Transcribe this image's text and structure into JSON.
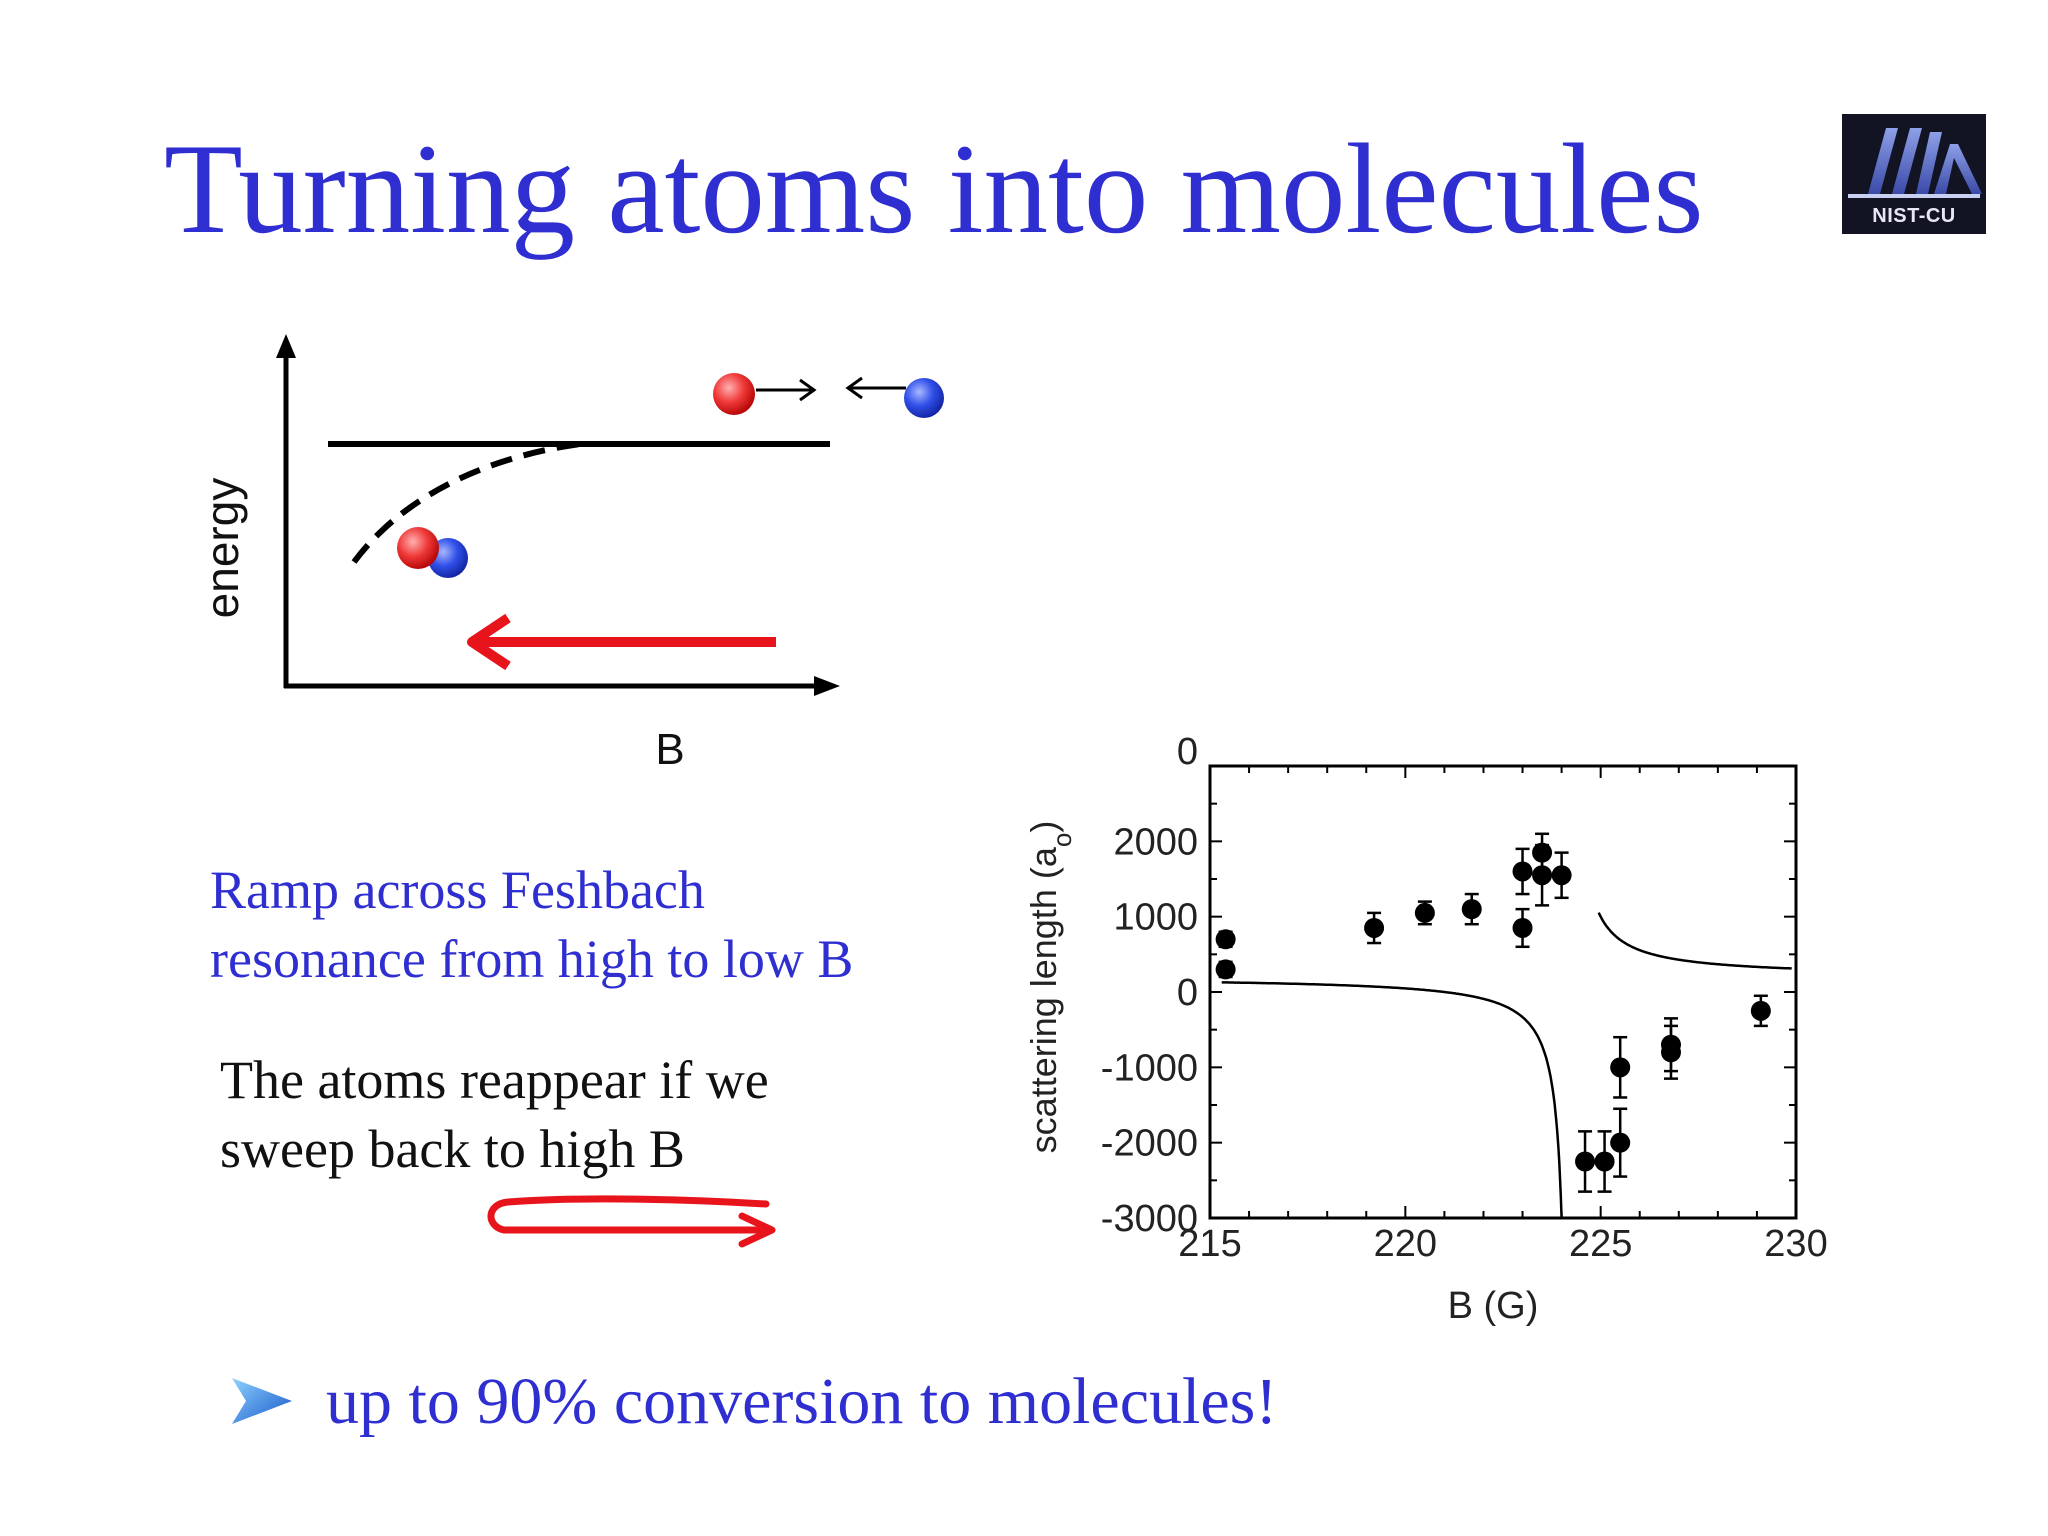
{
  "slide": {
    "title": "Turning atoms into molecules",
    "logo_text": "NIST-CU",
    "ramp_lines": [
      "Ramp across Feshbach",
      "resonance from high to low B"
    ],
    "reappear_lines": [
      "The atoms reappear if we",
      "sweep back to high B"
    ],
    "conclusion": "up to 90% conversion to molecules!",
    "colors": {
      "title_blue": "#2e2ed1",
      "arrow_red": "#e8141c",
      "atom_red": "#ee3030",
      "atom_blue": "#2f4fe0"
    }
  },
  "energy_diagram": {
    "ylabel": "energy",
    "xlabel": "B"
  },
  "chart_data": {
    "type": "scatter",
    "title": "",
    "xlabel": "B (G)",
    "ylabel": "scattering length (a",
    "ylabel_subscript": "o",
    "ylabel_close": ")",
    "xlim": [
      215,
      230
    ],
    "ylim": [
      -3000,
      3000
    ],
    "xticks": [
      215,
      220,
      225,
      230
    ],
    "yticks": [
      -3000,
      -2000,
      -1000,
      0,
      1000,
      2000
    ],
    "yticks_clipped_top": "0",
    "grid": false,
    "resonance_B": 224.2,
    "series": [
      {
        "points": [
          {
            "x": 215.4,
            "y": 700,
            "err": 100
          },
          {
            "x": 215.4,
            "y": 300,
            "err": 100
          },
          {
            "x": 219.2,
            "y": 850,
            "err": 200
          },
          {
            "x": 220.5,
            "y": 1050,
            "err": 150
          },
          {
            "x": 221.7,
            "y": 1100,
            "err": 200
          },
          {
            "x": 223.0,
            "y": 1600,
            "err": 300
          },
          {
            "x": 223.0,
            "y": 850,
            "err": 250
          },
          {
            "x": 223.5,
            "y": 1850,
            "err": 250
          },
          {
            "x": 223.5,
            "y": 1550,
            "err": 400
          },
          {
            "x": 224.0,
            "y": 1550,
            "err": 300
          },
          {
            "x": 224.6,
            "y": -2250,
            "err": 400
          },
          {
            "x": 225.1,
            "y": -2250,
            "err": 400
          },
          {
            "x": 225.5,
            "y": -2000,
            "err": 450
          },
          {
            "x": 225.5,
            "y": -1000,
            "err": 400
          },
          {
            "x": 226.8,
            "y": -700,
            "err": 350
          },
          {
            "x": 226.8,
            "y": -800,
            "err": 350
          },
          {
            "x": 229.1,
            "y": -250,
            "err": 200
          }
        ]
      }
    ]
  }
}
